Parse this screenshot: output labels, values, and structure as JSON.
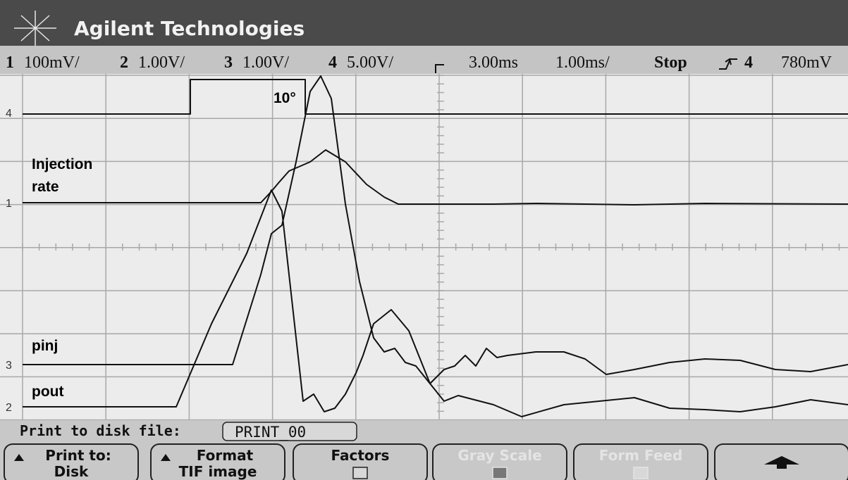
{
  "header": {
    "brand": "Agilent Technologies"
  },
  "status": {
    "channels": [
      {
        "number": "1",
        "scale": "100mV/"
      },
      {
        "number": "2",
        "scale": "1.00V/"
      },
      {
        "number": "3",
        "scale": "1.00V/"
      },
      {
        "number": "4",
        "scale": "5.00V/"
      }
    ],
    "delay": "3.00ms",
    "timebase": "1.00ms/",
    "mode": "Stop",
    "trigger_source": "4",
    "trigger_level": "780mV"
  },
  "annotations": {
    "angle": "10°",
    "injection_1": "Injection",
    "injection_2": "rate",
    "pinj": "pinj",
    "pout": "pout"
  },
  "print_file": {
    "label": "Print to disk file:",
    "value": "PRINT_00"
  },
  "softkeys": [
    {
      "label": "Print to:",
      "value": "Disk"
    },
    {
      "label": "Format",
      "value": "TIF image"
    },
    {
      "label": "Factors"
    },
    {
      "label": "Gray Scale"
    },
    {
      "label": "Form Feed"
    }
  ]
}
